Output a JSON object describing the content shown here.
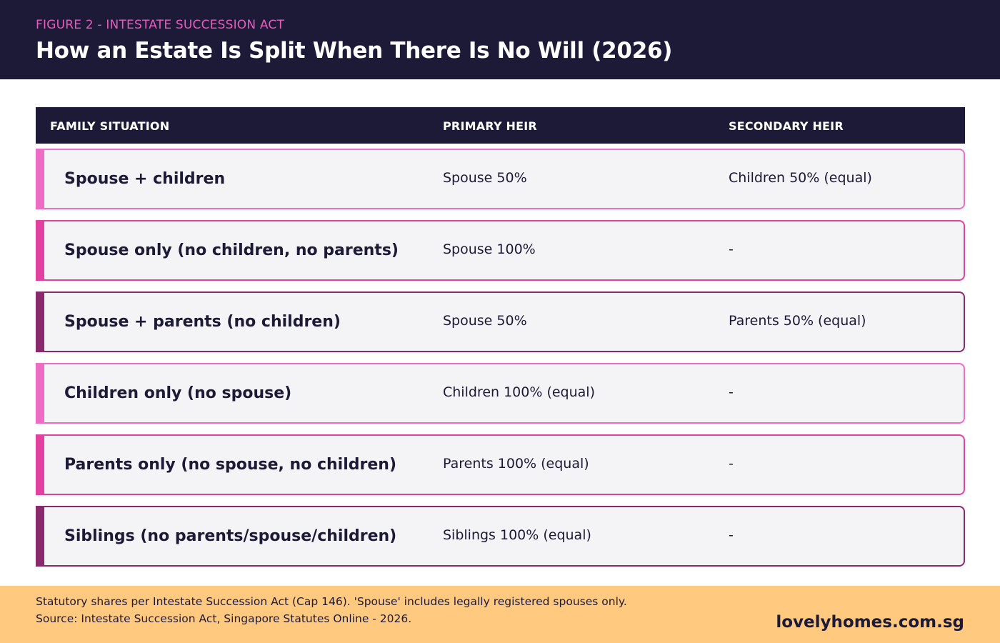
{
  "header": {
    "eyebrow": "FIGURE 2 - INTESTATE SUCCESSION ACT",
    "title": "How an Estate Is Split When There Is No Will (2026)"
  },
  "table": {
    "columns": [
      "FAMILY SITUATION",
      "PRIMARY HEIR",
      "SECONDARY HEIR"
    ],
    "rows": [
      {
        "situation": "Spouse + children",
        "primary": "Spouse 50%",
        "secondary": "Children 50% (equal)",
        "accent": "#ee6cc6"
      },
      {
        "situation": "Spouse only (no children, no parents)",
        "primary": "Spouse 100%",
        "secondary": "-",
        "accent": "#e3419f"
      },
      {
        "situation": "Spouse + parents (no children)",
        "primary": "Spouse 50%",
        "secondary": "Parents 50% (equal)",
        "accent": "#8a2a6e"
      },
      {
        "situation": "Children only (no spouse)",
        "primary": "Children 100% (equal)",
        "secondary": "-",
        "accent": "#ee6cc6"
      },
      {
        "situation": "Parents only (no spouse, no children)",
        "primary": "Parents 100% (equal)",
        "secondary": "-",
        "accent": "#e3419f"
      },
      {
        "situation": "Siblings (no parents/spouse/children)",
        "primary": "Siblings 100% (equal)",
        "secondary": "-",
        "accent": "#8a2a6e"
      }
    ]
  },
  "footer": {
    "note_line1": "Statutory shares per Intestate Succession Act (Cap 146). 'Spouse' includes legally registered spouses only.",
    "note_line2": "Source: Intestate Succession Act, Singapore Statutes Online - 2026.",
    "brand": "lovelyhomes.com.sg"
  },
  "colors": {
    "navy": "#1c1a36",
    "pink": "#ee6cc6",
    "hot_pink": "#e3419f",
    "plum": "#8a2a6e",
    "footer_bg": "#ffc97f"
  }
}
